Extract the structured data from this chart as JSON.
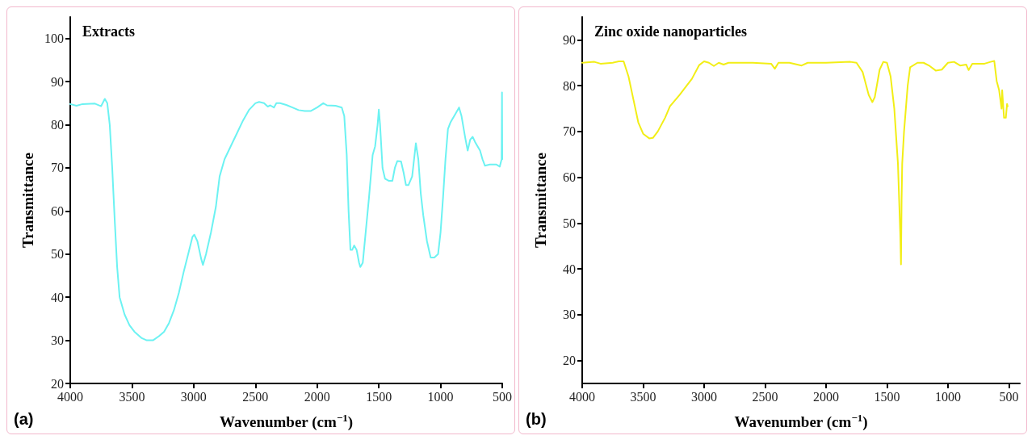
{
  "chart_data": [
    {
      "type": "line",
      "title": "Extracts",
      "xlabel": "Wavenumber (cm$^{−1}$)",
      "ylabel": "Transmittance",
      "annotations": [
        "(a)"
      ],
      "xlim": [
        4000,
        500
      ],
      "xticks": [
        4000,
        3500,
        3000,
        2500,
        2000,
        1500,
        1000,
        500
      ],
      "ylim": [
        20,
        105
      ],
      "yticks": [
        20,
        30,
        40,
        50,
        60,
        70,
        80,
        90,
        100
      ],
      "grid": false,
      "marker": "none",
      "line_style": "solid",
      "series": [
        {
          "color": "#6cf2f2",
          "x": [
            4000,
            3950,
            3900,
            3800,
            3750,
            3720,
            3700,
            3680,
            3660,
            3640,
            3620,
            3600,
            3560,
            3520,
            3480,
            3420,
            3380,
            3330,
            3280,
            3240,
            3200,
            3160,
            3120,
            3080,
            3040,
            3010,
            2995,
            2970,
            2940,
            2925,
            2900,
            2860,
            2820,
            2790,
            2750,
            2700,
            2650,
            2600,
            2550,
            2500,
            2470,
            2430,
            2400,
            2380,
            2350,
            2330,
            2300,
            2250,
            2200,
            2150,
            2100,
            2050,
            2000,
            1950,
            1920,
            1850,
            1800,
            1780,
            1760,
            1745,
            1730,
            1715,
            1700,
            1680,
            1660,
            1650,
            1630,
            1610,
            1580,
            1550,
            1530,
            1510,
            1500,
            1490,
            1470,
            1450,
            1420,
            1390,
            1370,
            1350,
            1320,
            1300,
            1280,
            1260,
            1230,
            1200,
            1180,
            1160,
            1140,
            1110,
            1080,
            1050,
            1020,
            1000,
            980,
            960,
            940,
            920,
            880,
            850,
            830,
            800,
            780,
            760,
            740,
            720,
            700,
            680,
            660,
            640,
            600,
            550,
            520,
            505,
            502,
            500
          ],
          "values": [
            84.8,
            84.4,
            84.8,
            84.9,
            84.3,
            86,
            85,
            80,
            70,
            58,
            47,
            40,
            36,
            33.5,
            32,
            30.5,
            30,
            30,
            31,
            32,
            34,
            37,
            41,
            46,
            50.5,
            54,
            54.5,
            53,
            49,
            47.5,
            50,
            55,
            61,
            68,
            72,
            75,
            78,
            81,
            83.5,
            85,
            85.3,
            85,
            84.2,
            84.5,
            84,
            85,
            85,
            84.6,
            84,
            83.4,
            83.2,
            83.2,
            84,
            85,
            84.5,
            84.4,
            84,
            82,
            73,
            60,
            51,
            51,
            52,
            51,
            48,
            47,
            48,
            54,
            63,
            73,
            75,
            80,
            83.5,
            80,
            70,
            67.5,
            67,
            67,
            70,
            71.6,
            71.5,
            69,
            66,
            66,
            68,
            75.7,
            72,
            64,
            59,
            53,
            49.2,
            49.2,
            50,
            55,
            63,
            72,
            79,
            80.5,
            82.5,
            84,
            82,
            77,
            74,
            76.5,
            77.2,
            76,
            75,
            74,
            72,
            70.5,
            70.8,
            70.8,
            70.3,
            72,
            87.5,
            72
          ]
        }
      ]
    },
    {
      "type": "line",
      "title": "Zinc oxide nanoparticles",
      "xlabel": "Wavenumber (cm$^{−1}$)",
      "ylabel": "Transmittance",
      "annotations": [
        "(b)"
      ],
      "xlim": [
        4000,
        410
      ],
      "xticks": [
        4000,
        3500,
        3000,
        2500,
        2000,
        1500,
        1000,
        500
      ],
      "ylim": [
        15,
        95
      ],
      "yticks": [
        20,
        30,
        40,
        50,
        60,
        70,
        80,
        90
      ],
      "grid": false,
      "marker": "none",
      "line_style": "solid",
      "series": [
        {
          "color": "#f2ee16",
          "x": [
            4000,
            3900,
            3850,
            3750,
            3700,
            3660,
            3620,
            3580,
            3540,
            3500,
            3450,
            3420,
            3380,
            3320,
            3280,
            3200,
            3100,
            3040,
            3000,
            2960,
            2920,
            2880,
            2840,
            2800,
            2700,
            2600,
            2450,
            2420,
            2390,
            2300,
            2200,
            2150,
            2000,
            1800,
            1750,
            1700,
            1650,
            1620,
            1600,
            1560,
            1530,
            1500,
            1470,
            1440,
            1410,
            1400,
            1390,
            1385,
            1380,
            1375,
            1360,
            1330,
            1310,
            1250,
            1200,
            1150,
            1100,
            1050,
            1000,
            950,
            900,
            850,
            830,
            800,
            750,
            700,
            650,
            620,
            600,
            580,
            560,
            555,
            540,
            525,
            515,
            510
          ],
          "values": [
            85,
            85.2,
            84.8,
            85,
            85.3,
            85.3,
            82,
            77,
            72,
            69.5,
            68.5,
            68.6,
            70,
            73,
            75.5,
            78,
            81.5,
            84.5,
            85.3,
            85,
            84.3,
            85,
            84.6,
            85,
            85,
            85,
            84.8,
            83.7,
            85,
            85,
            84.4,
            85,
            85,
            85.2,
            85,
            83,
            78,
            76.4,
            77.5,
            83.5,
            85.2,
            85,
            82,
            75,
            63,
            55,
            47,
            41,
            55,
            63,
            70,
            80,
            84,
            85,
            85,
            84.3,
            83.3,
            83.5,
            85,
            85.2,
            84.4,
            84.6,
            83.4,
            84.8,
            84.8,
            84.8,
            85.2,
            85.4,
            81,
            79,
            75,
            79,
            73,
            73,
            76,
            75.5
          ]
        }
      ]
    }
  ]
}
